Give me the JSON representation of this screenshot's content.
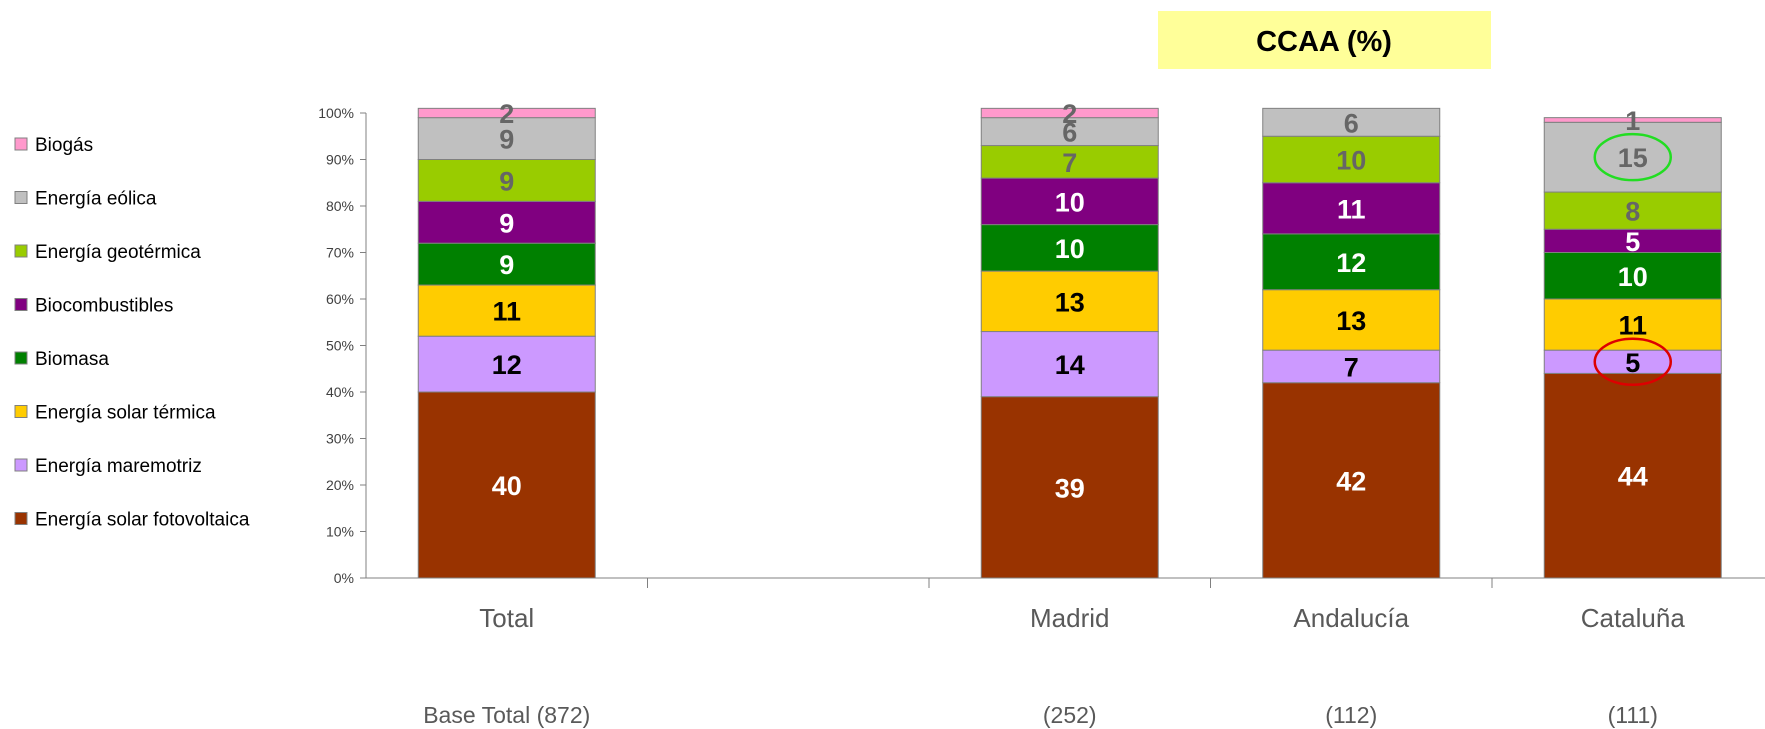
{
  "banner": {
    "label": "CCAA (%)"
  },
  "colors": {
    "banner": "#ffff99",
    "highlight_green": "#22dd22",
    "highlight_red": "#dd0000",
    "axis": "#808080"
  },
  "chart_data": {
    "type": "bar",
    "stacked": true,
    "title": "",
    "xlabel": "",
    "ylabel": "",
    "ylim": [
      0,
      100
    ],
    "y_ticks": [
      "0%",
      "10%",
      "20%",
      "30%",
      "40%",
      "50%",
      "60%",
      "70%",
      "80%",
      "90%",
      "100%"
    ],
    "legend_position": "left",
    "grid": false,
    "categories": [
      "Total",
      "",
      "Madrid",
      "Andalucía",
      "Cataluña"
    ],
    "base_labels": [
      "Base Total  (872)",
      "",
      "(252)",
      "(112)",
      "(111)"
    ],
    "series": [
      {
        "name": "Energía solar fotovoltaica",
        "color": "#993300",
        "label_color": "#ffffff",
        "values": [
          40,
          null,
          39,
          42,
          44
        ]
      },
      {
        "name": "Energía maremotriz",
        "color": "#cc99ff",
        "label_color": "#000000",
        "values": [
          12,
          null,
          14,
          7,
          5
        ]
      },
      {
        "name": "Energía solar térmica",
        "color": "#ffcc00",
        "label_color": "#000000",
        "values": [
          11,
          null,
          13,
          13,
          11
        ]
      },
      {
        "name": "Biomasa",
        "color": "#008000",
        "label_color": "#ffffff",
        "values": [
          9,
          null,
          10,
          12,
          10
        ]
      },
      {
        "name": "Biocombustibles",
        "color": "#800080",
        "label_color": "#ffffff",
        "values": [
          9,
          null,
          10,
          11,
          5
        ]
      },
      {
        "name": "Energía geotérmica",
        "color": "#99cc00",
        "label_color": "#666666",
        "values": [
          9,
          null,
          7,
          10,
          8
        ]
      },
      {
        "name": "Energía eólica",
        "color": "#c0c0c0",
        "label_color": "#666666",
        "values": [
          9,
          null,
          6,
          6,
          15
        ]
      },
      {
        "name": "Biogás",
        "color": "#ff99cc",
        "label_color": "#666666",
        "values": [
          2,
          null,
          2,
          0,
          1
        ]
      }
    ],
    "annotations": [
      {
        "category": "Cataluña",
        "series": "Energía eólica",
        "shape": "ellipse",
        "color": "green"
      },
      {
        "category": "Cataluña",
        "series": "Energía maremotriz",
        "shape": "ellipse",
        "color": "red"
      }
    ]
  }
}
